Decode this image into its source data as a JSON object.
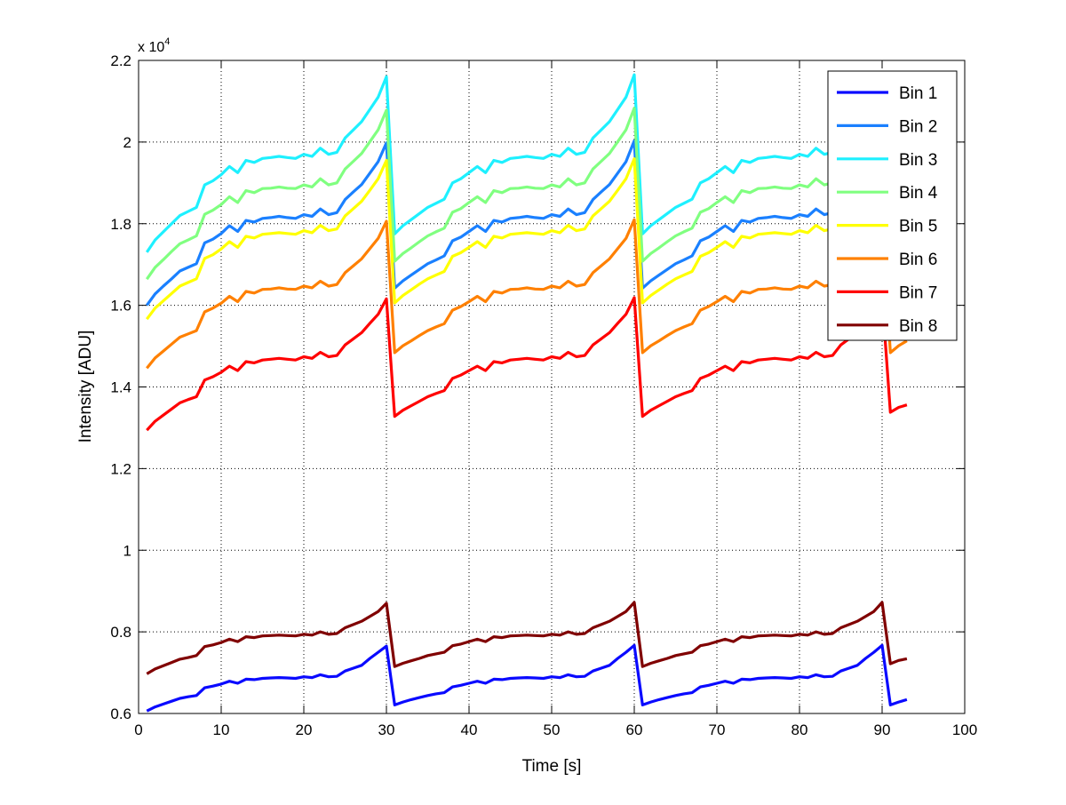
{
  "chart_data": {
    "type": "line",
    "title": "",
    "xlabel": "Time [s]",
    "ylabel": "Intensity [ADU]",
    "y_exponent_label": "x 10",
    "y_exponent_power": "4",
    "y_scale": 10000,
    "xlim": [
      0,
      100
    ],
    "ylim": [
      0.6,
      2.2
    ],
    "xticks": [
      "0",
      "10",
      "20",
      "30",
      "40",
      "50",
      "60",
      "70",
      "80",
      "90",
      "100"
    ],
    "yticks": [
      "0.6",
      "0.8",
      "1",
      "1.2",
      "1.4",
      "1.6",
      "1.8",
      "2",
      "2.2"
    ],
    "grid": true,
    "legend_placement": "top-right",
    "x": [
      1,
      2,
      3,
      4,
      5,
      6,
      7,
      8,
      9,
      10,
      11,
      12,
      13,
      14,
      15,
      16,
      17,
      18,
      19,
      20,
      21,
      22,
      23,
      24,
      25,
      26,
      27,
      28,
      29,
      30,
      31,
      32,
      33,
      34,
      35,
      36,
      37,
      38,
      39,
      40,
      41,
      42,
      43,
      44,
      45,
      46,
      47,
      48,
      49,
      50,
      51,
      52,
      53,
      54,
      55,
      56,
      57,
      58,
      59,
      60,
      61,
      62,
      63,
      64,
      65,
      66,
      67,
      68,
      69,
      70,
      71,
      72,
      73,
      74,
      75,
      76,
      77,
      78,
      79,
      80,
      81,
      82,
      83,
      84,
      85,
      86,
      87,
      88,
      89,
      90,
      91,
      92,
      93
    ],
    "series": [
      {
        "name": "Bin 1",
        "color": "#0a0aff",
        "values": [
          0.606,
          0.616,
          0.623,
          0.63,
          0.637,
          0.641,
          0.644,
          0.663,
          0.667,
          0.672,
          0.679,
          0.674,
          0.684,
          0.683,
          0.686,
          0.687,
          0.688,
          0.687,
          0.686,
          0.69,
          0.688,
          0.695,
          0.69,
          0.691,
          0.704,
          0.711,
          0.718,
          0.735,
          0.75,
          0.765,
          0.621,
          0.628,
          0.634,
          0.639,
          0.644,
          0.648,
          0.651,
          0.665,
          0.669,
          0.674,
          0.679,
          0.674,
          0.684,
          0.683,
          0.686,
          0.687,
          0.688,
          0.687,
          0.686,
          0.69,
          0.688,
          0.695,
          0.69,
          0.691,
          0.704,
          0.711,
          0.718,
          0.735,
          0.75,
          0.767,
          0.621,
          0.628,
          0.634,
          0.639,
          0.644,
          0.648,
          0.651,
          0.665,
          0.669,
          0.674,
          0.679,
          0.674,
          0.684,
          0.683,
          0.686,
          0.687,
          0.688,
          0.687,
          0.686,
          0.69,
          0.688,
          0.695,
          0.69,
          0.691,
          0.704,
          0.711,
          0.718,
          0.735,
          0.75,
          0.767,
          0.621,
          0.628,
          0.634
        ]
      },
      {
        "name": "Bin 2",
        "color": "#1a80ff",
        "values": [
          1.6,
          1.628,
          1.647,
          1.665,
          1.684,
          1.693,
          1.702,
          1.753,
          1.762,
          1.776,
          1.795,
          1.781,
          1.808,
          1.804,
          1.813,
          1.815,
          1.818,
          1.815,
          1.813,
          1.822,
          1.818,
          1.836,
          1.822,
          1.827,
          1.859,
          1.878,
          1.896,
          1.924,
          1.952,
          1.998,
          1.642,
          1.66,
          1.674,
          1.688,
          1.702,
          1.711,
          1.721,
          1.758,
          1.767,
          1.781,
          1.795,
          1.781,
          1.808,
          1.804,
          1.813,
          1.815,
          1.818,
          1.815,
          1.813,
          1.822,
          1.818,
          1.836,
          1.822,
          1.827,
          1.859,
          1.878,
          1.896,
          1.924,
          1.952,
          2.003,
          1.642,
          1.66,
          1.674,
          1.688,
          1.702,
          1.711,
          1.721,
          1.758,
          1.767,
          1.781,
          1.795,
          1.781,
          1.808,
          1.804,
          1.813,
          1.815,
          1.818,
          1.815,
          1.813,
          1.822,
          1.818,
          1.836,
          1.822,
          1.827,
          1.859,
          1.878,
          1.896,
          1.924,
          1.952,
          2.003,
          1.642,
          1.66,
          1.674
        ]
      },
      {
        "name": "Bin 3",
        "color": "#1ef0ff",
        "values": [
          1.73,
          1.76,
          1.78,
          1.8,
          1.82,
          1.83,
          1.84,
          1.895,
          1.905,
          1.92,
          1.94,
          1.925,
          1.955,
          1.95,
          1.96,
          1.962,
          1.965,
          1.962,
          1.96,
          1.97,
          1.965,
          1.985,
          1.97,
          1.975,
          2.01,
          2.03,
          2.05,
          2.08,
          2.11,
          2.16,
          1.775,
          1.795,
          1.81,
          1.825,
          1.84,
          1.85,
          1.86,
          1.9,
          1.91,
          1.925,
          1.94,
          1.925,
          1.955,
          1.95,
          1.96,
          1.962,
          1.965,
          1.962,
          1.96,
          1.97,
          1.965,
          1.985,
          1.97,
          1.975,
          2.01,
          2.03,
          2.05,
          2.08,
          2.11,
          2.165,
          1.775,
          1.795,
          1.81,
          1.825,
          1.84,
          1.85,
          1.86,
          1.9,
          1.91,
          1.925,
          1.94,
          1.925,
          1.955,
          1.95,
          1.96,
          1.962,
          1.965,
          1.962,
          1.96,
          1.97,
          1.965,
          1.985,
          1.97,
          1.975,
          2.01,
          2.03,
          2.05,
          2.08,
          2.11,
          2.165,
          1.775,
          1.795,
          1.81
        ]
      },
      {
        "name": "Bin 4",
        "color": "#80ff80",
        "values": [
          1.664,
          1.693,
          1.712,
          1.732,
          1.751,
          1.76,
          1.77,
          1.823,
          1.833,
          1.847,
          1.866,
          1.852,
          1.881,
          1.876,
          1.886,
          1.887,
          1.89,
          1.887,
          1.886,
          1.895,
          1.89,
          1.91,
          1.895,
          1.9,
          1.934,
          1.953,
          1.972,
          2.001,
          2.03,
          2.078,
          1.708,
          1.727,
          1.741,
          1.756,
          1.77,
          1.78,
          1.789,
          1.828,
          1.837,
          1.852,
          1.866,
          1.852,
          1.881,
          1.876,
          1.886,
          1.887,
          1.89,
          1.887,
          1.886,
          1.895,
          1.89,
          1.91,
          1.895,
          1.9,
          1.934,
          1.953,
          1.972,
          2.001,
          2.03,
          2.083,
          1.708,
          1.727,
          1.741,
          1.756,
          1.77,
          1.78,
          1.789,
          1.828,
          1.837,
          1.852,
          1.866,
          1.852,
          1.881,
          1.876,
          1.886,
          1.887,
          1.89,
          1.887,
          1.886,
          1.895,
          1.89,
          1.91,
          1.895,
          1.9,
          1.934,
          1.953,
          1.972,
          2.001,
          2.03,
          2.083,
          1.708,
          1.727,
          1.741
        ]
      },
      {
        "name": "Bin 5",
        "color": "#ffff00",
        "values": [
          1.566,
          1.593,
          1.611,
          1.629,
          1.647,
          1.656,
          1.665,
          1.715,
          1.724,
          1.738,
          1.756,
          1.742,
          1.769,
          1.765,
          1.774,
          1.776,
          1.778,
          1.776,
          1.774,
          1.783,
          1.778,
          1.796,
          1.783,
          1.787,
          1.819,
          1.837,
          1.855,
          1.882,
          1.91,
          1.955,
          1.606,
          1.624,
          1.638,
          1.652,
          1.665,
          1.674,
          1.683,
          1.72,
          1.729,
          1.742,
          1.756,
          1.742,
          1.769,
          1.765,
          1.774,
          1.776,
          1.778,
          1.776,
          1.774,
          1.783,
          1.778,
          1.796,
          1.783,
          1.787,
          1.819,
          1.837,
          1.855,
          1.882,
          1.91,
          1.959,
          1.606,
          1.624,
          1.638,
          1.652,
          1.665,
          1.674,
          1.683,
          1.72,
          1.729,
          1.742,
          1.756,
          1.742,
          1.769,
          1.765,
          1.774,
          1.776,
          1.778,
          1.776,
          1.774,
          1.783,
          1.778,
          1.796,
          1.783,
          1.787,
          1.819,
          1.837,
          1.855,
          1.882,
          1.91,
          1.959,
          1.606,
          1.624,
          1.638
        ]
      },
      {
        "name": "Bin 6",
        "color": "#ff8000",
        "values": [
          1.446,
          1.471,
          1.488,
          1.505,
          1.522,
          1.53,
          1.538,
          1.584,
          1.593,
          1.605,
          1.622,
          1.609,
          1.634,
          1.63,
          1.639,
          1.64,
          1.643,
          1.64,
          1.639,
          1.647,
          1.643,
          1.659,
          1.647,
          1.651,
          1.68,
          1.697,
          1.714,
          1.739,
          1.764,
          1.806,
          1.484,
          1.501,
          1.513,
          1.526,
          1.538,
          1.547,
          1.555,
          1.588,
          1.597,
          1.609,
          1.622,
          1.609,
          1.634,
          1.63,
          1.639,
          1.64,
          1.643,
          1.64,
          1.639,
          1.647,
          1.643,
          1.659,
          1.647,
          1.651,
          1.68,
          1.697,
          1.714,
          1.739,
          1.764,
          1.81,
          1.484,
          1.501,
          1.513,
          1.526,
          1.538,
          1.547,
          1.555,
          1.588,
          1.597,
          1.609,
          1.622,
          1.609,
          1.634,
          1.63,
          1.639,
          1.64,
          1.643,
          1.64,
          1.639,
          1.647,
          1.643,
          1.659,
          1.647,
          1.651,
          1.68,
          1.697,
          1.714,
          1.739,
          1.764,
          1.81,
          1.484,
          1.501,
          1.513
        ]
      },
      {
        "name": "Bin 7",
        "color": "#ff0000",
        "values": [
          1.294,
          1.316,
          1.331,
          1.346,
          1.361,
          1.369,
          1.376,
          1.417,
          1.425,
          1.436,
          1.451,
          1.44,
          1.462,
          1.459,
          1.466,
          1.468,
          1.47,
          1.468,
          1.466,
          1.474,
          1.47,
          1.485,
          1.474,
          1.477,
          1.503,
          1.518,
          1.533,
          1.556,
          1.578,
          1.616,
          1.328,
          1.343,
          1.354,
          1.365,
          1.376,
          1.384,
          1.391,
          1.421,
          1.429,
          1.44,
          1.451,
          1.44,
          1.462,
          1.459,
          1.466,
          1.468,
          1.47,
          1.468,
          1.466,
          1.474,
          1.47,
          1.485,
          1.474,
          1.477,
          1.503,
          1.518,
          1.533,
          1.556,
          1.578,
          1.619,
          1.328,
          1.343,
          1.354,
          1.365,
          1.376,
          1.384,
          1.391,
          1.421,
          1.429,
          1.44,
          1.451,
          1.44,
          1.462,
          1.459,
          1.466,
          1.468,
          1.47,
          1.468,
          1.466,
          1.474,
          1.47,
          1.485,
          1.474,
          1.477,
          1.503,
          1.518,
          1.533,
          1.556,
          1.578,
          1.619,
          1.338,
          1.35,
          1.356
        ]
      },
      {
        "name": "Bin 8",
        "color": "#800000",
        "values": [
          0.697,
          0.709,
          0.717,
          0.725,
          0.733,
          0.737,
          0.742,
          0.764,
          0.768,
          0.774,
          0.782,
          0.776,
          0.788,
          0.786,
          0.79,
          0.791,
          0.792,
          0.791,
          0.79,
          0.794,
          0.792,
          0.8,
          0.794,
          0.796,
          0.81,
          0.818,
          0.826,
          0.838,
          0.85,
          0.87,
          0.715,
          0.723,
          0.729,
          0.735,
          0.742,
          0.746,
          0.75,
          0.766,
          0.77,
          0.776,
          0.782,
          0.776,
          0.788,
          0.786,
          0.79,
          0.791,
          0.792,
          0.791,
          0.79,
          0.794,
          0.792,
          0.8,
          0.794,
          0.796,
          0.81,
          0.818,
          0.826,
          0.838,
          0.85,
          0.872,
          0.715,
          0.723,
          0.729,
          0.735,
          0.742,
          0.746,
          0.75,
          0.766,
          0.77,
          0.776,
          0.782,
          0.776,
          0.788,
          0.786,
          0.79,
          0.791,
          0.792,
          0.791,
          0.79,
          0.794,
          0.792,
          0.8,
          0.794,
          0.796,
          0.81,
          0.818,
          0.826,
          0.838,
          0.85,
          0.872,
          0.722,
          0.73,
          0.734
        ]
      }
    ]
  }
}
